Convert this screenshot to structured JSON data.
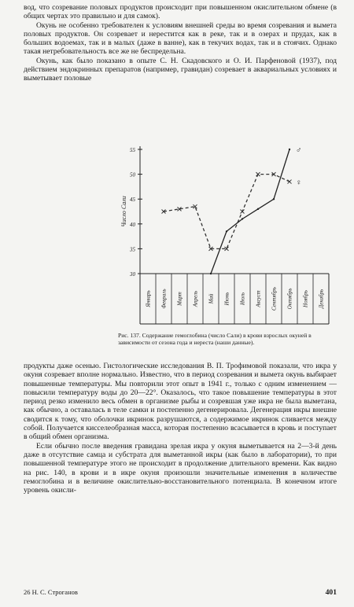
{
  "paragraphs_top": [
    "вод, что созревание половых продуктов происходит при повышенном окислительном обмене (в общих чертах это правильно и для самок).",
    "Окунь не особенно требователен к условиям внешней среды во время созревания и вымета половых продуктов. Он созревает и нерестится как в реке, так и в озерах и прудах, как в больших водоемах, так и в малых (даже в ванне), как в текучих водах, так и в стоячих. Однако такая нетребовательность все же не беспредельна.",
    "Окунь, как было показано в опыте С. Н. Скадовского и О. И. Парфеновой (1937), под действием эндокринных препаратов (например, гравидан) созревает в аквариальных условиях и выметывает половые"
  ],
  "figure": {
    "caption": "Рис. 137. Содержание гемоглобина (число Сали) в крови взрослых окуней в зависимости от сезона года и нереста (наши данные).",
    "chart_data": {
      "type": "line",
      "y_label": "Число Сали",
      "categories": [
        "Январь",
        "Февраль",
        "Март",
        "Апрель",
        "Май",
        "Июнь",
        "Июль",
        "Август",
        "Сентябрь",
        "Октябрь",
        "Ноябрь",
        "Декабрь"
      ],
      "series": [
        {
          "name": "♀",
          "color": "#333333",
          "style": "dashed",
          "values": [
            null,
            42.5,
            43,
            43.5,
            35,
            35,
            42.5,
            50,
            50,
            48.5,
            null,
            null
          ]
        },
        {
          "name": "♂",
          "color": "#222222",
          "style": "solid",
          "values": [
            null,
            null,
            null,
            null,
            30,
            38.5,
            41,
            43,
            45,
            55,
            null,
            null
          ]
        }
      ],
      "ylim": [
        30,
        55
      ],
      "yticks": [
        30,
        35,
        40,
        45,
        50,
        55
      ]
    }
  },
  "paragraphs_bottom": [
    "продукты даже осенью. Гистологические исследования В. П. Трофимовой показали, что икра у окуня созревает вполне нормально. Известно, что в период созревания и вымета окунь выбирает повышенные температуры. Мы повторили этот опыт в 1941 г., только с одним изменением — повысили температуру воды до 20—22°. Оказалось, что такое повышение температуры в этот период резко изменило весь обмен в организме рыбы и созревшая уже икра не была выметана, как обычно, а оставалась в теле самки и постепенно дегенерировала. Дегенерация икры внешне сводится к тому, что оболочки икринок разрушаются, а содержимое икринок сливается между собой. Получается кисселеобразная масса, которая постепенно всасывается в кровь и поступает в общий обмен организма.",
    "Если обычно после введения гравидана зрелая икра у окуня выметывается на 2—3-й день даже в отсутствие самца и субстрата для выметанной икры (как было в лаборатории), то при повышенной температуре этого не происходит в продолжение длительного времени. Как видно на рис. 140, в крови и в икре окуня произошли значительные изменения в количестве гемоглобина и в величине окислительно-восстановительного потенциала. В конечном итоге уровень окисли-"
  ],
  "footer": {
    "signature": "26 Н. С. Строганов",
    "page_number": "401"
  }
}
